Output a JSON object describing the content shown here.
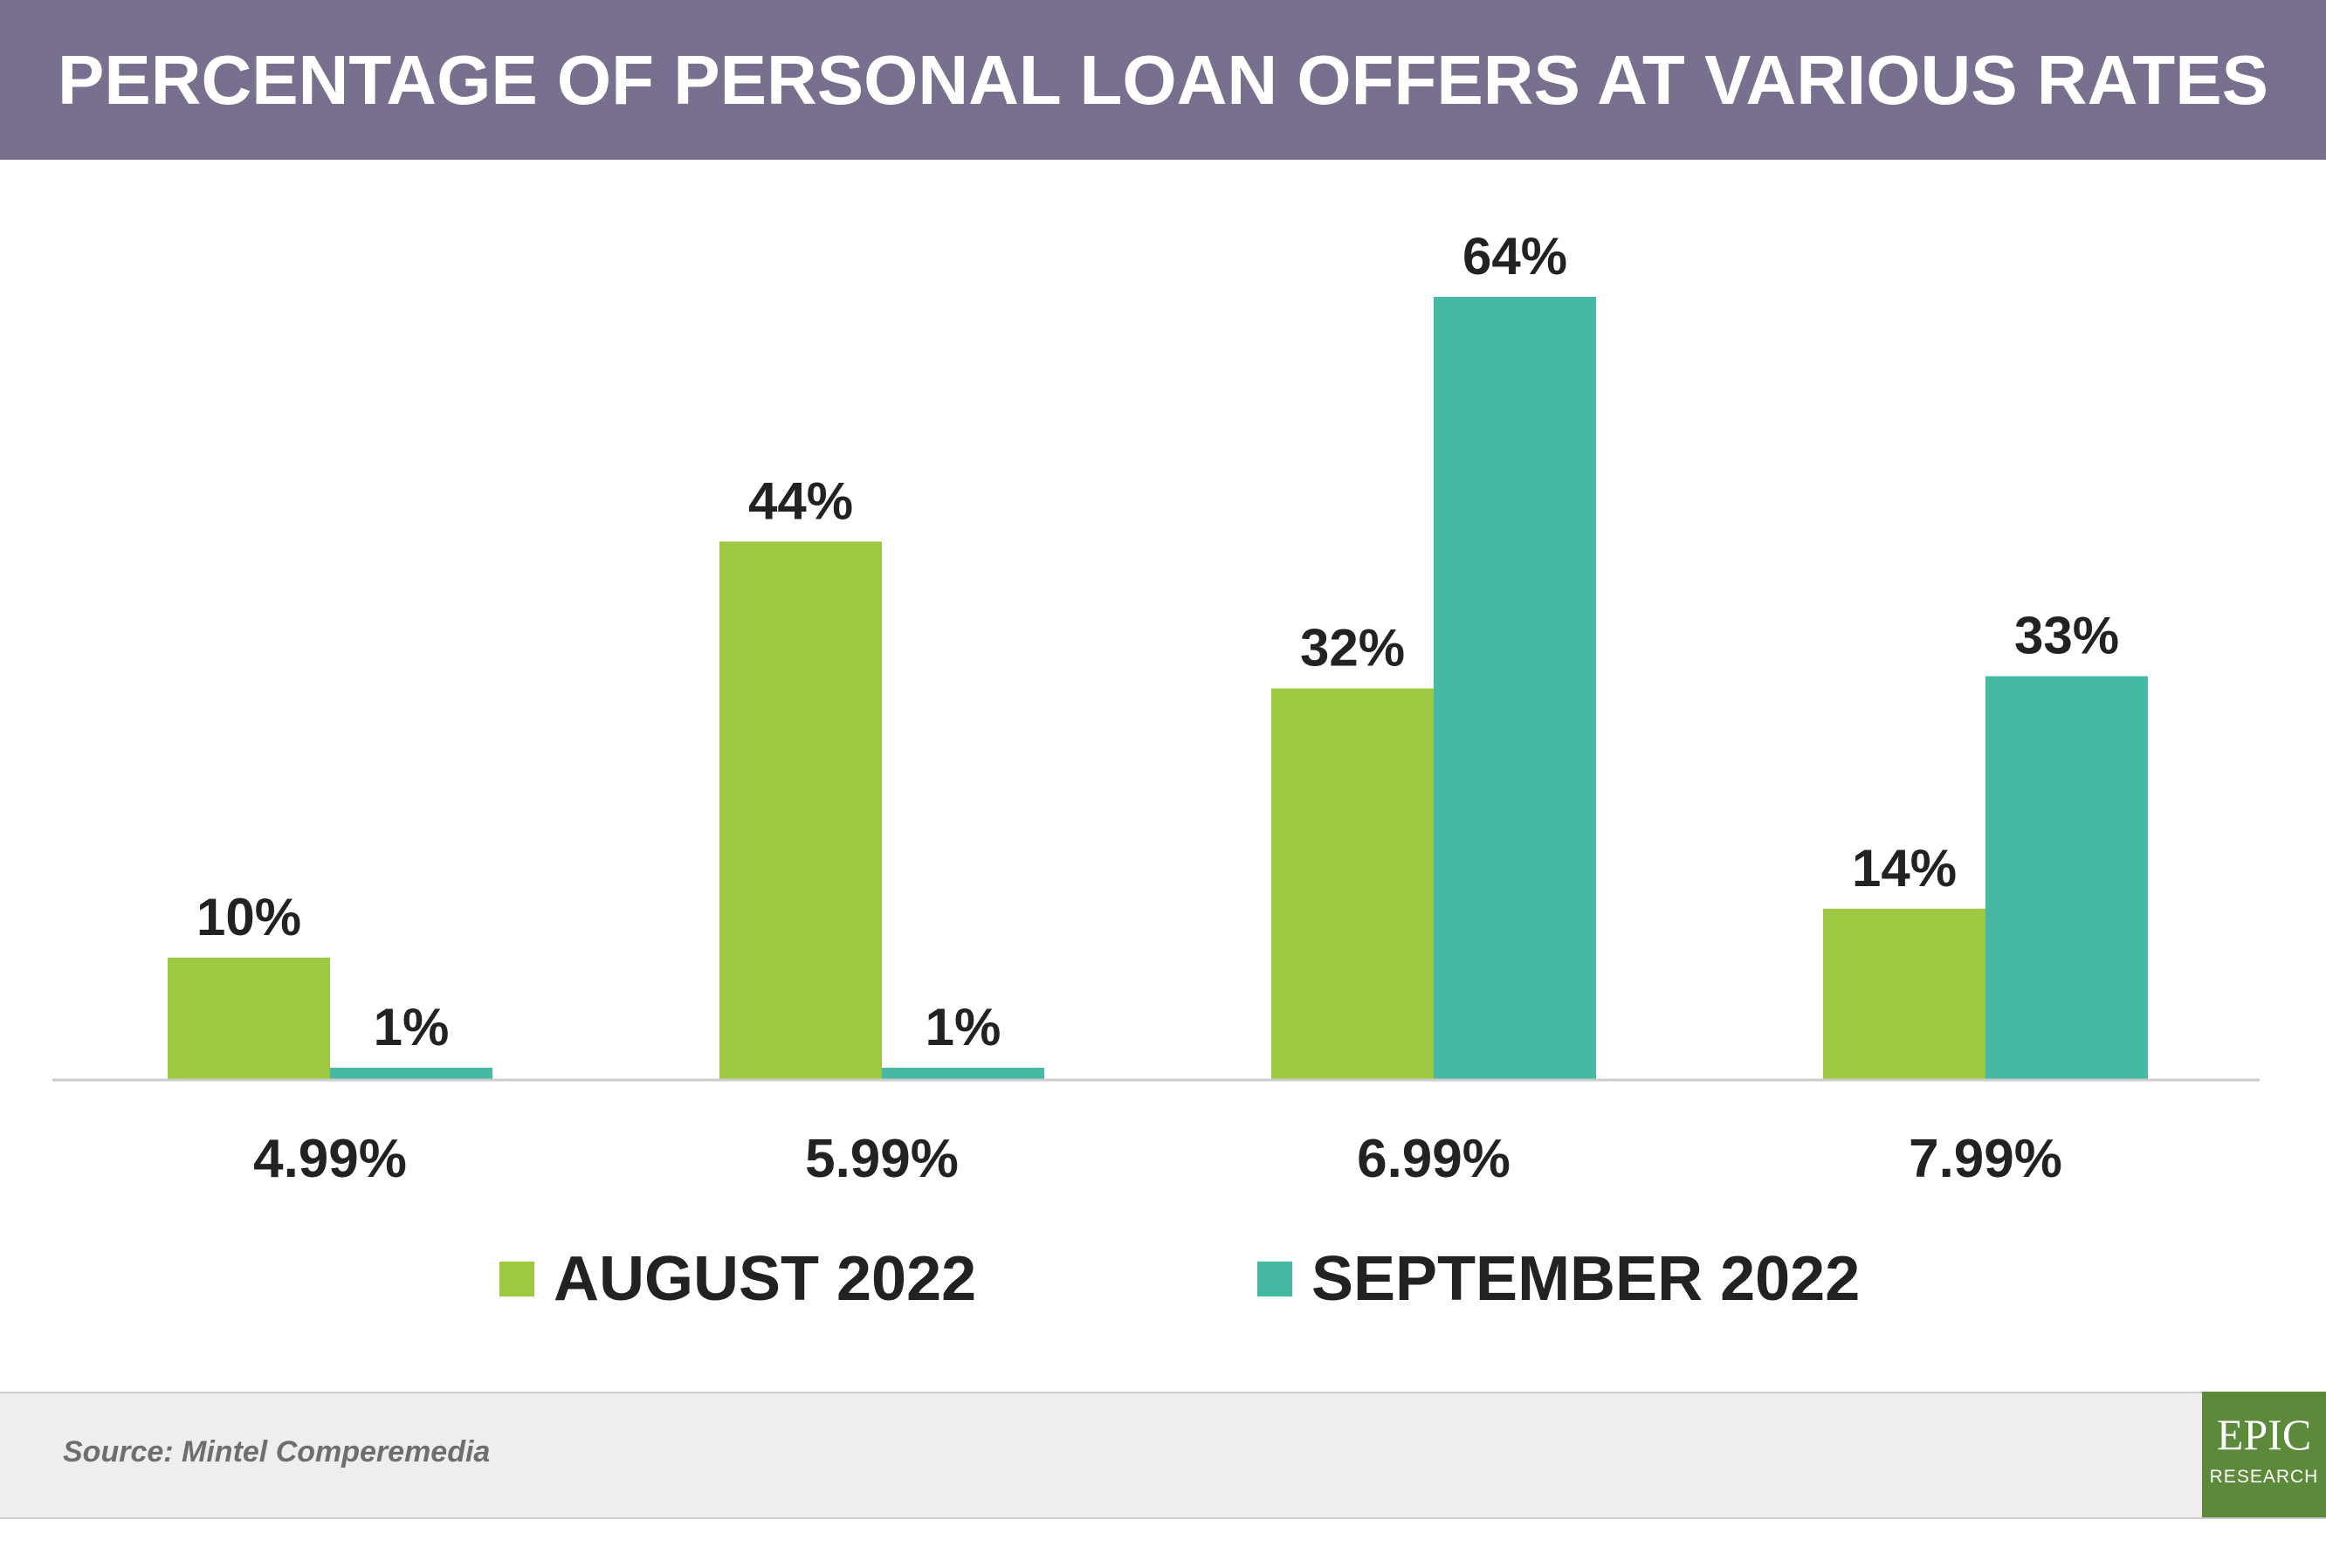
{
  "title": "PERCENTAGE OF PERSONAL LOAN OFFERS AT VARIOUS RATES",
  "colors": {
    "header_bg": "#79708f",
    "august": "#9dc942",
    "september": "#45b9a1",
    "footer_bg": "#efedee",
    "logo_bg": "#5c8a3a"
  },
  "chart_data": {
    "type": "bar",
    "categories": [
      "4.99%",
      "5.99%",
      "6.99%",
      "7.99%"
    ],
    "series": [
      {
        "name": "AUGUST 2022",
        "values": [
          10,
          44,
          32,
          14
        ],
        "labels": [
          "10%",
          "44%",
          "32%",
          "14%"
        ]
      },
      {
        "name": "SEPTEMBER 2022",
        "values": [
          1,
          1,
          64,
          33
        ],
        "labels": [
          "1%",
          "1%",
          "64%",
          "33%"
        ]
      }
    ],
    "ylim": [
      0,
      64
    ],
    "grid": false,
    "legend_position": "bottom"
  },
  "legend": {
    "august": "AUGUST 2022",
    "september": "SEPTEMBER 2022"
  },
  "footer": {
    "source": "Source: Mintel Comperemedia"
  },
  "logo": {
    "main": "EPIC",
    "sub": "RESEARCH"
  }
}
